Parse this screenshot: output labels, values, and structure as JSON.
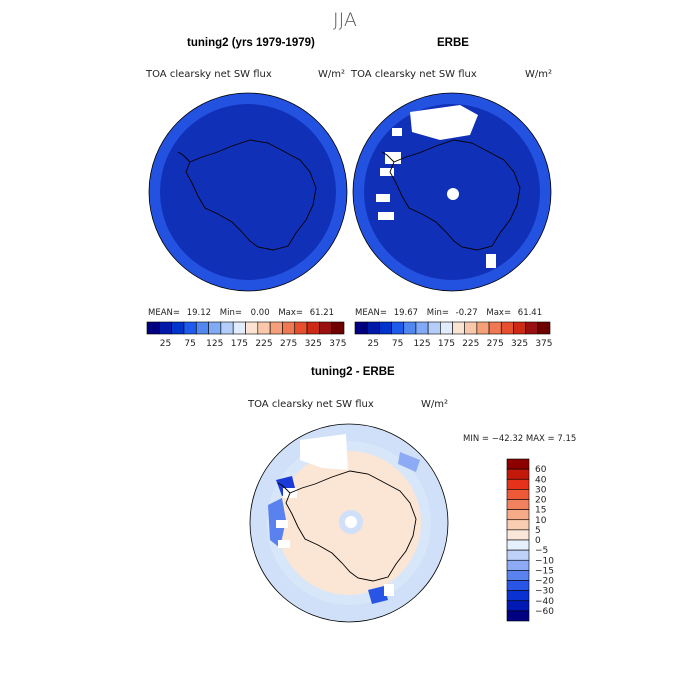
{
  "figure_title": "JJA",
  "panels": [
    {
      "heading": "tuning2 (yrs 1979-1979)",
      "subtitle": "TOA clearsky net SW flux",
      "units": "W/m²",
      "stats": {
        "mean": "19.12",
        "min": "0.00",
        "max": "61.21"
      }
    },
    {
      "heading": "ERBE",
      "subtitle": "TOA clearsky net SW flux",
      "units": "W/m²",
      "stats": {
        "mean": "19.67",
        "min": "-0.27",
        "max": "61.41"
      }
    }
  ],
  "stat_labels": {
    "mean": "MEAN=",
    "min": "Min=",
    "max": "Max="
  },
  "abs_colorbar": {
    "colors": [
      "#000080",
      "#0019a8",
      "#0033cc",
      "#1e5aeb",
      "#5088f0",
      "#80aaf5",
      "#b4cdfa",
      "#e1ecfc",
      "#fbe3d3",
      "#f9c8aa",
      "#f6a07a",
      "#f07852",
      "#e6502d",
      "#cc2a14",
      "#991010",
      "#6e0000"
    ],
    "labels": [
      "25",
      "75",
      "125",
      "175",
      "225",
      "275",
      "325",
      "375"
    ]
  },
  "diff_panel": {
    "heading": "tuning2 - ERBE",
    "subtitle": "TOA clearsky net SW flux",
    "units": "W/m²",
    "stats_text": "MIN = −42.32 MAX =    7.15"
  },
  "diff_colorbar": {
    "colors": [
      "#000080",
      "#0019b4",
      "#0a32d2",
      "#2855e6",
      "#5a82ef",
      "#8cabf4",
      "#bed2f9",
      "#e6effc",
      "#fbe6da",
      "#f9cdb2",
      "#f6aa88",
      "#f2825f",
      "#ee5a37",
      "#e6321a",
      "#c3190a",
      "#8c0000"
    ],
    "labels": [
      "60",
      "40",
      "30",
      "20",
      "15",
      "10",
      "5",
      "0",
      "−5",
      "−10",
      "−15",
      "−20",
      "−30",
      "−40",
      "−60"
    ]
  },
  "colors": {
    "map_bg_model": "#1637c8",
    "map_bg_ring": "#2251e4",
    "diff_bg": "#cfe0f8",
    "diff_land": "#fbe5d4"
  }
}
